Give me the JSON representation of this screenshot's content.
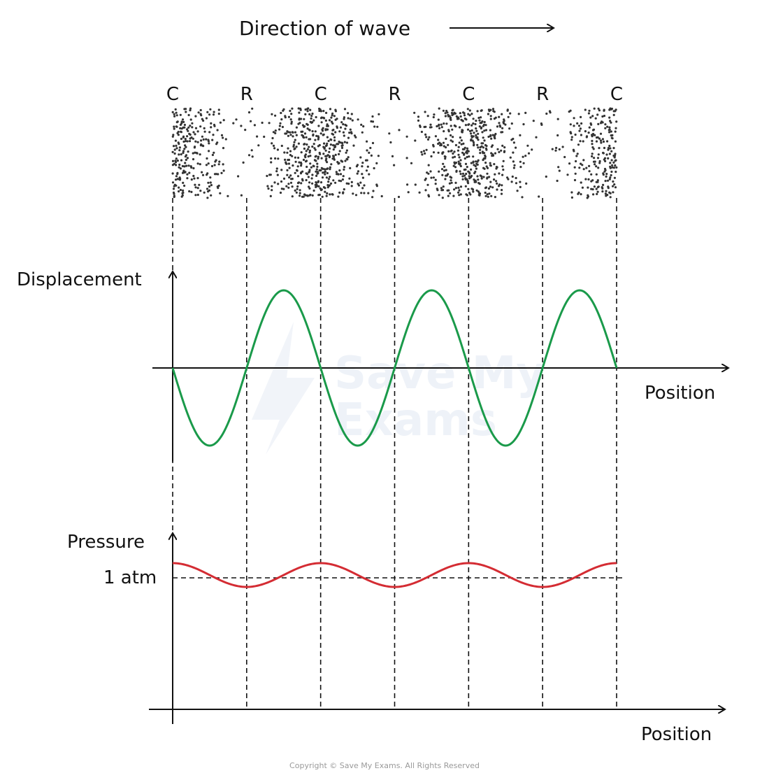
{
  "header": {
    "direction_label": "Direction of wave"
  },
  "compression_rarefaction_labels": [
    "C",
    "R",
    "C",
    "R",
    "C",
    "R",
    "C"
  ],
  "displacement_graph": {
    "y_label": "Displacement",
    "x_label": "Position",
    "line_color": "#1a9a4a",
    "cycles": 3,
    "starts_downward": true
  },
  "pressure_graph": {
    "y_label": "Pressure",
    "x_label": "Position",
    "reference_label": "1 atm",
    "line_color": "#d42c33",
    "cycles": 3,
    "starts_at_maximum": true
  },
  "colors": {
    "displacement": "#1a9a4a",
    "pressure": "#d42c33",
    "ink": "#111111",
    "particles": "#333333"
  },
  "watermark": {
    "line1": "Save My",
    "line2": "Exams"
  },
  "copyright": "Copyright © Save My Exams. All Rights Reserved"
}
